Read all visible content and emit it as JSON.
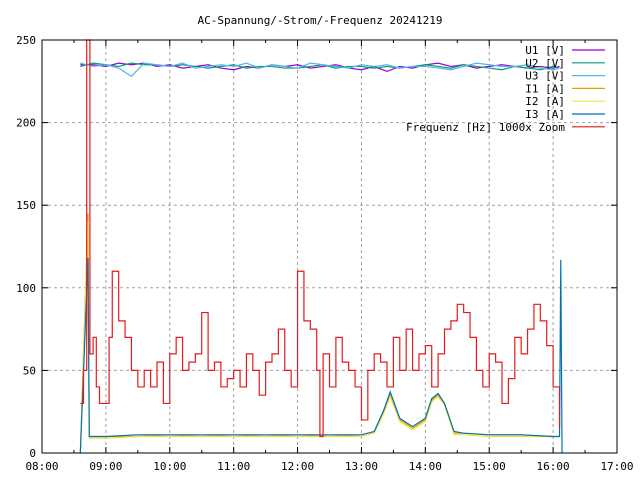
{
  "chart_data": {
    "type": "line",
    "title": "AC-Spannung/-Strom/-Frequenz 20241219",
    "xlabel": "",
    "ylabel": "",
    "xlim": [
      8,
      17
    ],
    "ylim": [
      0,
      250
    ],
    "xticks": [
      {
        "v": 8,
        "l": "08:00"
      },
      {
        "v": 9,
        "l": "09:00"
      },
      {
        "v": 10,
        "l": "10:00"
      },
      {
        "v": 11,
        "l": "11:00"
      },
      {
        "v": 12,
        "l": "12:00"
      },
      {
        "v": 13,
        "l": "13:00"
      },
      {
        "v": 14,
        "l": "14:00"
      },
      {
        "v": 15,
        "l": "15:00"
      },
      {
        "v": 16,
        "l": "16:00"
      },
      {
        "v": 17,
        "l": "17:00"
      }
    ],
    "yticks": [
      0,
      50,
      100,
      150,
      200,
      250
    ],
    "grid": true,
    "legend_position": "top-right",
    "series": [
      {
        "name": "U1 [V]",
        "color": "#9400d3",
        "x": [
          8.6,
          8.8,
          9.0,
          9.2,
          9.4,
          9.6,
          9.8,
          10.0,
          10.2,
          10.4,
          10.6,
          10.8,
          11.0,
          11.2,
          11.4,
          11.6,
          11.8,
          12.0,
          12.2,
          12.4,
          12.6,
          12.8,
          13.0,
          13.2,
          13.4,
          13.6,
          13.8,
          14.0,
          14.2,
          14.4,
          14.6,
          14.8,
          15.0,
          15.2,
          15.4,
          15.6,
          15.8,
          16.0,
          16.1
        ],
        "y": [
          235,
          235,
          234,
          236,
          235,
          236,
          234,
          235,
          233,
          234,
          235,
          233,
          232,
          234,
          233,
          235,
          234,
          235,
          233,
          234,
          235,
          233,
          232,
          234,
          231,
          234,
          233,
          235,
          236,
          234,
          235,
          233,
          234,
          235,
          234,
          233,
          234,
          233,
          234
        ]
      },
      {
        "name": "U2 [V]",
        "color": "#009e73",
        "x": [
          8.6,
          8.8,
          9.0,
          9.2,
          9.4,
          9.6,
          9.8,
          10.0,
          10.2,
          10.4,
          10.6,
          10.8,
          11.0,
          11.2,
          11.4,
          11.6,
          11.8,
          12.0,
          12.2,
          12.4,
          12.6,
          12.8,
          13.0,
          13.2,
          13.4,
          13.6,
          13.8,
          14.0,
          14.2,
          14.4,
          14.6,
          14.8,
          15.0,
          15.2,
          15.4,
          15.6,
          15.8,
          16.0,
          16.1
        ],
        "y": [
          234,
          236,
          235,
          234,
          236,
          235,
          235,
          234,
          235,
          234,
          233,
          234,
          235,
          233,
          234,
          234,
          233,
          233,
          234,
          235,
          233,
          234,
          234,
          233,
          234,
          233,
          234,
          235,
          234,
          233,
          235,
          234,
          233,
          232,
          234,
          233,
          232,
          234,
          233
        ]
      },
      {
        "name": "U3 [V]",
        "color": "#56b4e9",
        "x": [
          8.6,
          8.8,
          9.0,
          9.2,
          9.4,
          9.6,
          9.8,
          10.0,
          10.2,
          10.4,
          10.6,
          10.8,
          11.0,
          11.2,
          11.4,
          11.6,
          11.8,
          12.0,
          12.2,
          12.4,
          12.6,
          12.8,
          13.0,
          13.2,
          13.4,
          13.6,
          13.8,
          14.0,
          14.2,
          14.4,
          14.6,
          14.8,
          15.0,
          15.2,
          15.4,
          15.6,
          15.8,
          16.0,
          16.1
        ],
        "y": [
          236,
          234,
          235,
          233,
          228,
          236,
          235,
          234,
          236,
          233,
          234,
          235,
          234,
          236,
          233,
          235,
          234,
          233,
          236,
          235,
          234,
          233,
          235,
          234,
          235,
          233,
          234,
          234,
          233,
          232,
          234,
          236,
          235,
          234,
          234,
          235,
          233,
          232,
          233
        ]
      },
      {
        "name": "I1 [A]",
        "color": "#e69f00",
        "x": [
          8.6,
          8.72,
          8.74,
          9.0,
          9.5,
          10.0,
          10.5,
          11.0,
          11.5,
          12.0,
          12.5,
          13.0,
          13.2,
          13.35,
          13.45,
          13.6,
          13.8,
          14.0,
          14.1,
          14.2,
          14.3,
          14.45,
          14.6,
          15.0,
          15.5,
          16.0,
          16.1
        ],
        "y": [
          0,
          145,
          10,
          10,
          10,
          11,
          10,
          11,
          10,
          11,
          10,
          11,
          13,
          25,
          36,
          20,
          15,
          20,
          32,
          35,
          30,
          12,
          12,
          11,
          11,
          10,
          10
        ]
      },
      {
        "name": "I2 [A]",
        "color": "#f0e442",
        "x": [
          8.6,
          8.72,
          8.74,
          9.0,
          9.5,
          10.0,
          10.5,
          11.0,
          11.5,
          12.0,
          12.5,
          13.0,
          13.2,
          13.35,
          13.45,
          13.6,
          13.8,
          14.0,
          14.1,
          14.2,
          14.3,
          14.45,
          14.6,
          15.0,
          15.5,
          16.0,
          16.1
        ],
        "y": [
          0,
          140,
          9,
          9,
          10,
          10,
          10,
          10,
          10,
          10,
          10,
          10,
          12,
          24,
          34,
          19,
          14,
          19,
          31,
          34,
          29,
          11,
          11,
          10,
          10,
          10,
          10
        ]
      },
      {
        "name": "I3 [A]",
        "color": "#0072b2",
        "x": [
          8.6,
          8.72,
          8.74,
          9.0,
          9.5,
          10.0,
          10.5,
          11.0,
          11.5,
          12.0,
          12.5,
          13.0,
          13.2,
          13.35,
          13.45,
          13.6,
          13.8,
          14.0,
          14.1,
          14.2,
          14.3,
          14.45,
          14.6,
          15.0,
          15.5,
          16.0,
          16.1,
          16.12,
          16.14
        ],
        "y": [
          0,
          118,
          10,
          10,
          11,
          11,
          11,
          11,
          11,
          11,
          11,
          11,
          13,
          26,
          37,
          21,
          16,
          21,
          33,
          36,
          30,
          13,
          12,
          11,
          11,
          10,
          10,
          117,
          0
        ]
      },
      {
        "name": "Frequenz [Hz] 1000x Zoom",
        "color": "#e41a1c",
        "step": true,
        "x": [
          8.6,
          8.65,
          8.7,
          8.75,
          8.8,
          8.85,
          8.9,
          9.0,
          9.05,
          9.1,
          9.2,
          9.3,
          9.4,
          9.5,
          9.6,
          9.7,
          9.8,
          9.9,
          10.0,
          10.1,
          10.2,
          10.3,
          10.4,
          10.5,
          10.6,
          10.7,
          10.8,
          10.9,
          11.0,
          11.1,
          11.2,
          11.3,
          11.4,
          11.5,
          11.6,
          11.7,
          11.8,
          11.9,
          12.0,
          12.1,
          12.2,
          12.3,
          12.35,
          12.4,
          12.5,
          12.6,
          12.7,
          12.8,
          12.9,
          13.0,
          13.1,
          13.2,
          13.3,
          13.4,
          13.5,
          13.6,
          13.7,
          13.8,
          13.9,
          14.0,
          14.1,
          14.2,
          14.3,
          14.4,
          14.5,
          14.6,
          14.7,
          14.8,
          14.9,
          15.0,
          15.1,
          15.2,
          15.3,
          15.4,
          15.5,
          15.6,
          15.7,
          15.8,
          15.9,
          16.0,
          16.1
        ],
        "y": [
          30,
          50,
          250,
          60,
          70,
          40,
          30,
          30,
          70,
          110,
          80,
          70,
          50,
          40,
          50,
          40,
          55,
          30,
          60,
          70,
          50,
          55,
          60,
          85,
          50,
          55,
          40,
          45,
          50,
          40,
          60,
          50,
          35,
          55,
          60,
          75,
          50,
          40,
          110,
          80,
          75,
          50,
          10,
          60,
          40,
          70,
          55,
          50,
          40,
          20,
          50,
          60,
          55,
          40,
          70,
          50,
          75,
          50,
          60,
          65,
          40,
          60,
          75,
          80,
          90,
          85,
          70,
          50,
          40,
          60,
          55,
          30,
          45,
          70,
          60,
          75,
          90,
          80,
          65,
          40,
          15
        ]
      }
    ]
  }
}
